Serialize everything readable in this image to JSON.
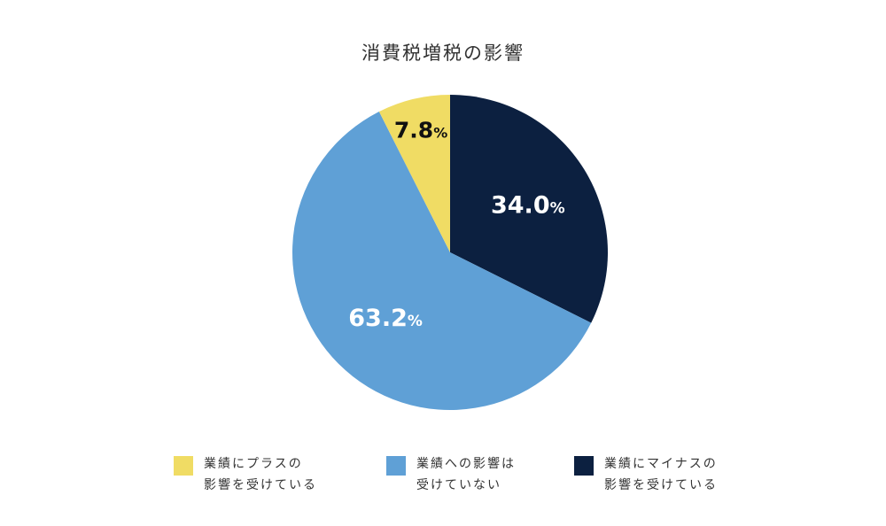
{
  "chart_data": {
    "type": "pie",
    "title": "消費税増税の影響",
    "start": "top",
    "direction": "clockwise",
    "slices": [
      {
        "value": 34.0,
        "label": "34.0",
        "unit": "%",
        "color": "#0c2040",
        "label_color": "#ffffff",
        "legend_lines": [
          "業績にマイナスの",
          "影響を受けている"
        ]
      },
      {
        "value": 63.2,
        "label": "63.2",
        "unit": "%",
        "color": "#5fa0d6",
        "label_color": "#ffffff",
        "legend_lines": [
          "業績への影響は",
          "受けていない"
        ]
      },
      {
        "value": 7.8,
        "label": "7.8",
        "unit": "%",
        "color": "#f0dc64",
        "label_color": "#111111",
        "legend_lines": [
          "業績にプラスの",
          "影響を受けている"
        ]
      }
    ],
    "legend_order": [
      2,
      1,
      0
    ],
    "legend_position": "bottom"
  }
}
